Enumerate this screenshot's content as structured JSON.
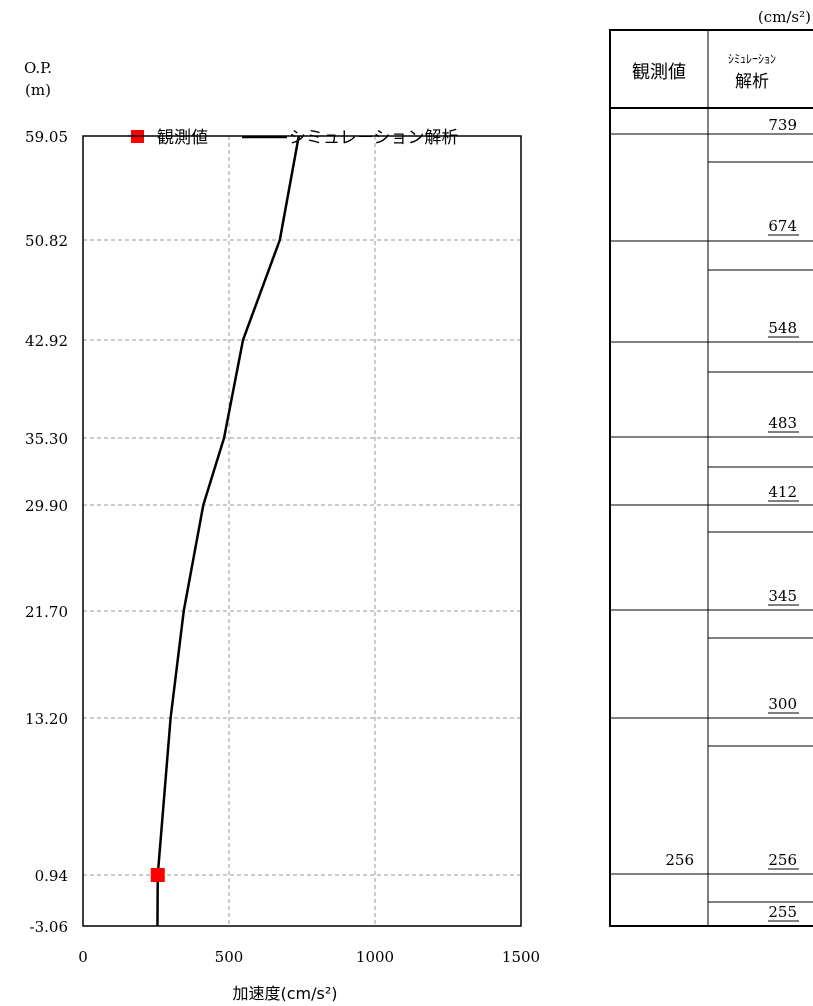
{
  "chart_data": {
    "type": "line",
    "y_axis": {
      "label_line1": "O.P.",
      "label_line2": "(m)",
      "ticks": [
        59.05,
        50.82,
        42.92,
        35.3,
        29.9,
        21.7,
        13.2,
        0.94,
        -3.06
      ],
      "tick_labels": [
        "59.05",
        "50.82",
        "42.92",
        "35.30",
        "29.90",
        "21.70",
        "13.20",
        "0.94",
        "-3.06"
      ]
    },
    "x_axis": {
      "label": "加速度(cm/s²)",
      "range": [
        0,
        1500
      ],
      "ticks": [
        0,
        500,
        1000,
        1500
      ],
      "tick_labels": [
        "0",
        "500",
        "1000",
        "1500"
      ]
    },
    "grid": true,
    "legend": {
      "placement": "top",
      "observed": "観測値",
      "simulation": "シミュレーション解析"
    },
    "series": [
      {
        "name": "シミュレーション解析",
        "color": "#000000",
        "points": [
          {
            "x": 739,
            "y": 59.05
          },
          {
            "x": 674,
            "y": 50.82
          },
          {
            "x": 548,
            "y": 42.92
          },
          {
            "x": 483,
            "y": 35.3
          },
          {
            "x": 412,
            "y": 29.9
          },
          {
            "x": 345,
            "y": 21.7
          },
          {
            "x": 300,
            "y": 13.2
          },
          {
            "x": 256,
            "y": 0.94
          },
          {
            "x": 255,
            "y": -3.06
          }
        ]
      },
      {
        "name": "観測値",
        "color": "#ff0000",
        "marker": "square",
        "points": [
          {
            "x": 256,
            "y": 0.94
          }
        ]
      }
    ]
  },
  "table": {
    "unit": "(cm/s²)",
    "header_observed": "観測値",
    "header_sim_line1": "ｼﾐｭﾚｰｼｮﾝ",
    "header_sim_line2": "解析",
    "rows": [
      {
        "observed": "",
        "sim": "739"
      },
      {
        "observed": "",
        "sim": "674"
      },
      {
        "observed": "",
        "sim": "548"
      },
      {
        "observed": "",
        "sim": "483"
      },
      {
        "observed": "",
        "sim": "412"
      },
      {
        "observed": "",
        "sim": "345"
      },
      {
        "observed": "",
        "sim": "300"
      },
      {
        "observed": "256",
        "sim": "256"
      },
      {
        "observed": "",
        "sim": "255"
      }
    ]
  }
}
